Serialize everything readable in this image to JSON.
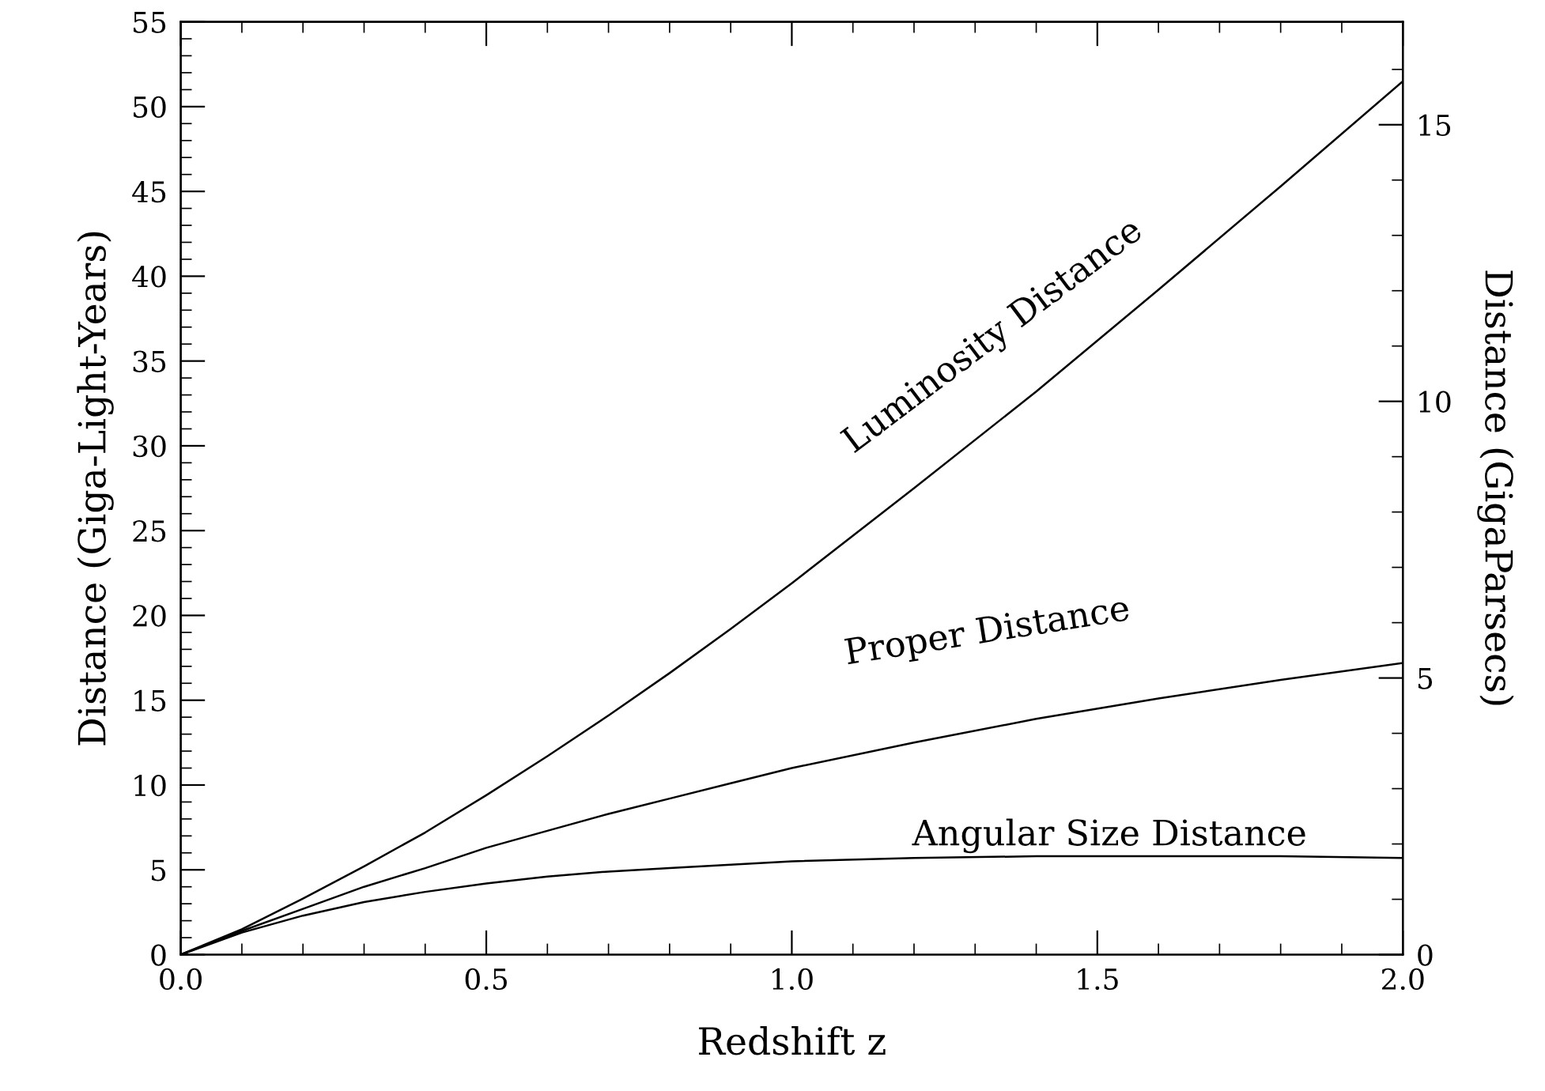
{
  "chart_data": {
    "type": "line",
    "xlabel": "Redshift z",
    "ylabel": "Distance (Giga-Light-Years)",
    "y2label": "Distance (GigaParsecs)",
    "x": [
      0,
      0.1,
      0.2,
      0.3,
      0.4,
      0.5,
      0.6,
      0.7,
      0.8,
      0.9,
      1.0,
      1.2,
      1.4,
      1.6,
      1.8,
      2.0
    ],
    "series": [
      {
        "name": "Luminosity Distance",
        "color": "#000000",
        "values": [
          0,
          1.5,
          3.3,
          5.2,
          7.2,
          9.4,
          11.7,
          14.1,
          16.6,
          19.2,
          21.9,
          27.5,
          33.2,
          39.2,
          45.3,
          51.5
        ]
      },
      {
        "name": "Proper Distance",
        "color": "#000000",
        "values": [
          0,
          1.4,
          2.7,
          4.0,
          5.1,
          6.3,
          7.3,
          8.3,
          9.2,
          10.1,
          11.0,
          12.5,
          13.9,
          15.1,
          16.2,
          17.2
        ]
      },
      {
        "name": "Angular Size Distance",
        "color": "#000000",
        "values": [
          0,
          1.3,
          2.3,
          3.1,
          3.7,
          4.2,
          4.6,
          4.9,
          5.1,
          5.3,
          5.5,
          5.7,
          5.8,
          5.8,
          5.8,
          5.7
        ]
      }
    ],
    "xlim": [
      0,
      2
    ],
    "ylim": [
      0,
      55
    ],
    "y2lim": [
      0,
      16.86
    ],
    "xticks": [
      {
        "value": 0,
        "label": "0.0"
      },
      {
        "value": 0.1,
        "label": null
      },
      {
        "value": 0.2,
        "label": null
      },
      {
        "value": 0.3,
        "label": null
      },
      {
        "value": 0.4,
        "label": null
      },
      0.5,
      {
        "value": 0.6,
        "label": null
      },
      {
        "value": 0.7,
        "label": null
      },
      {
        "value": 0.8,
        "label": null
      },
      {
        "value": 0.9,
        "label": null
      },
      {
        "value": 1.0,
        "label": "1.0"
      },
      {
        "value": 1.1,
        "label": null
      },
      {
        "value": 1.2,
        "label": null
      },
      {
        "value": 1.3,
        "label": null
      },
      {
        "value": 1.4,
        "label": null
      },
      1.5,
      {
        "value": 1.6,
        "label": null
      },
      {
        "value": 1.7,
        "label": null
      },
      {
        "value": 1.8,
        "label": null
      },
      {
        "value": 1.9,
        "label": null
      },
      {
        "value": 2.0,
        "label": "2.0"
      }
    ],
    "yticks": [
      0,
      {
        "value": 1,
        "label": null
      },
      {
        "value": 2,
        "label": null
      },
      {
        "value": 3,
        "label": null
      },
      {
        "value": 4,
        "label": null
      },
      5,
      {
        "value": 6,
        "label": null
      },
      {
        "value": 7,
        "label": null
      },
      {
        "value": 8,
        "label": null
      },
      {
        "value": 9,
        "label": null
      },
      10,
      {
        "value": 11,
        "label": null
      },
      {
        "value": 12,
        "label": null
      },
      {
        "value": 13,
        "label": null
      },
      {
        "value": 14,
        "label": null
      },
      15,
      {
        "value": 16,
        "label": null
      },
      {
        "value": 17,
        "label": null
      },
      {
        "value": 18,
        "label": null
      },
      {
        "value": 19,
        "label": null
      },
      20,
      {
        "value": 21,
        "label": null
      },
      {
        "value": 22,
        "label": null
      },
      {
        "value": 23,
        "label": null
      },
      {
        "value": 24,
        "label": null
      },
      25,
      {
        "value": 26,
        "label": null
      },
      {
        "value": 27,
        "label": null
      },
      {
        "value": 28,
        "label": null
      },
      {
        "value": 29,
        "label": null
      },
      30,
      {
        "value": 31,
        "label": null
      },
      {
        "value": 32,
        "label": null
      },
      {
        "value": 33,
        "label": null
      },
      {
        "value": 34,
        "label": null
      },
      35,
      {
        "value": 36,
        "label": null
      },
      {
        "value": 37,
        "label": null
      },
      {
        "value": 38,
        "label": null
      },
      {
        "value": 39,
        "label": null
      },
      40,
      {
        "value": 41,
        "label": null
      },
      {
        "value": 42,
        "label": null
      },
      {
        "value": 43,
        "label": null
      },
      {
        "value": 44,
        "label": null
      },
      45,
      {
        "value": 46,
        "label": null
      },
      {
        "value": 47,
        "label": null
      },
      {
        "value": 48,
        "label": null
      },
      {
        "value": 49,
        "label": null
      },
      50,
      {
        "value": 51,
        "label": null
      },
      {
        "value": 52,
        "label": null
      },
      {
        "value": 53,
        "label": null
      },
      {
        "value": 54,
        "label": null
      },
      55
    ],
    "y2ticks": [
      0,
      {
        "value": 1,
        "label": null
      },
      {
        "value": 2,
        "label": null
      },
      {
        "value": 3,
        "label": null
      },
      {
        "value": 4,
        "label": null
      },
      5,
      {
        "value": 6,
        "label": null
      },
      {
        "value": 7,
        "label": null
      },
      {
        "value": 8,
        "label": null
      },
      {
        "value": 9,
        "label": null
      },
      10,
      {
        "value": 11,
        "label": null
      },
      {
        "value": 12,
        "label": null
      },
      {
        "value": 13,
        "label": null
      },
      {
        "value": 14,
        "label": null
      },
      15,
      {
        "value": 16,
        "label": null
      }
    ],
    "grid": false,
    "legend": false,
    "marker": "none",
    "line_style": "solid"
  }
}
